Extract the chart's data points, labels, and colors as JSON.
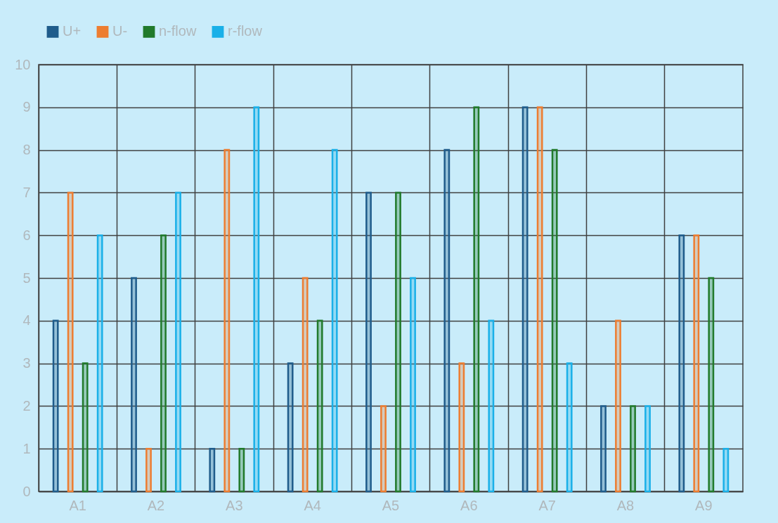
{
  "chart_data": {
    "type": "bar",
    "categories": [
      "A1",
      "A2",
      "A3",
      "A4",
      "A5",
      "A6",
      "A7",
      "A8",
      "A9"
    ],
    "series": [
      {
        "name": "U+",
        "color": "#1f5c8b",
        "values": [
          4,
          5,
          1,
          3,
          7,
          8,
          9,
          2,
          6
        ]
      },
      {
        "name": "U-",
        "color": "#ed7d31",
        "values": [
          7,
          1,
          8,
          5,
          2,
          3,
          9,
          4,
          6
        ]
      },
      {
        "name": "n-flow",
        "color": "#217a2b",
        "values": [
          3,
          6,
          1,
          4,
          7,
          9,
          8,
          2,
          5
        ]
      },
      {
        "name": "r-flow",
        "color": "#1ab0e8",
        "values": [
          6,
          7,
          9,
          8,
          5,
          4,
          3,
          2,
          1
        ]
      }
    ],
    "ylim": [
      0,
      10
    ],
    "yticks": [
      0,
      1,
      2,
      3,
      4,
      5,
      6,
      7,
      8,
      9,
      10
    ],
    "grid": true,
    "legend": "top"
  }
}
